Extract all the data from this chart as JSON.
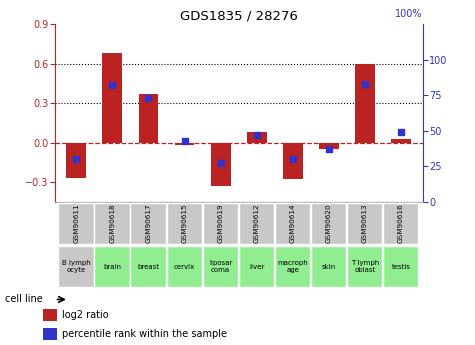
{
  "title": "GDS1835 / 28276",
  "gsm_labels": [
    "GSM90611",
    "GSM90618",
    "GSM90617",
    "GSM90615",
    "GSM90619",
    "GSM90612",
    "GSM90614",
    "GSM90620",
    "GSM90613",
    "GSM90616"
  ],
  "cell_line_labels": [
    "B lymph\nocyte",
    "brain",
    "breast",
    "cervix",
    "liposar\ncoma",
    "liver",
    "macroph\nage",
    "skin",
    "T lymph\noblast",
    "testis"
  ],
  "cell_line_colors": [
    "#c8c8c8",
    "#90ee90",
    "#90ee90",
    "#90ee90",
    "#90ee90",
    "#90ee90",
    "#90ee90",
    "#90ee90",
    "#90ee90",
    "#90ee90"
  ],
  "log2_ratio": [
    -0.27,
    0.68,
    0.37,
    -0.02,
    -0.33,
    0.08,
    -0.28,
    -0.05,
    0.6,
    0.03
  ],
  "pct_rank": [
    30,
    82,
    73,
    43,
    27,
    47,
    30,
    37,
    83,
    49
  ],
  "ylim_left": [
    -0.45,
    0.9
  ],
  "ylim_right": [
    0,
    125
  ],
  "yticks_left": [
    -0.3,
    0.0,
    0.3,
    0.6,
    0.9
  ],
  "yticks_right": [
    0,
    25,
    50,
    75,
    100
  ],
  "bar_color": "#bb2222",
  "dot_color": "#3333cc",
  "hline_dotted_values": [
    0.3,
    0.6
  ],
  "hline_zero_color": "#bb2222",
  "legend_labels": [
    "log2 ratio",
    "percentile rank within the sample"
  ],
  "gsm_bg": "#c8c8c8"
}
